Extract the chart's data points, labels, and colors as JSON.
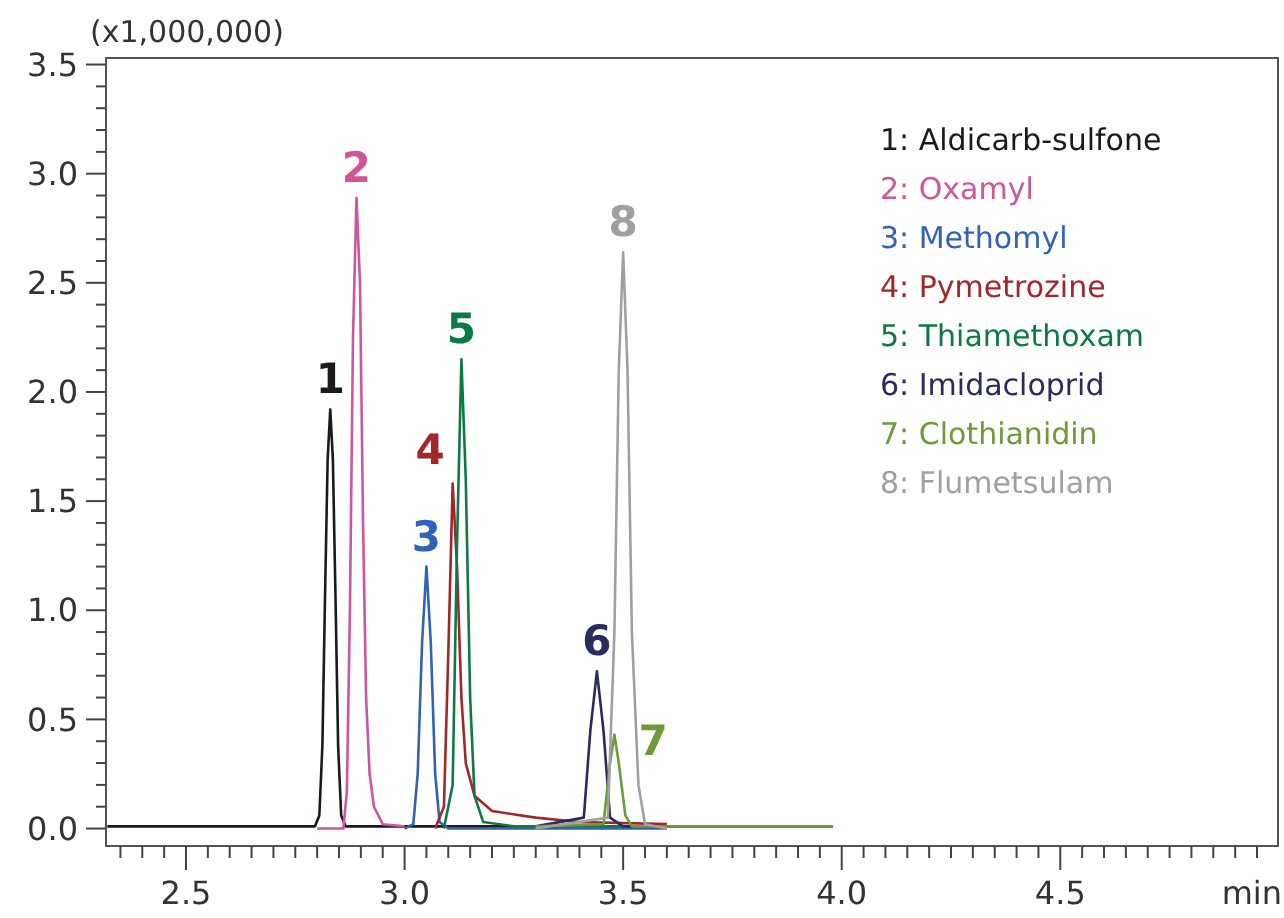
{
  "chart_data": {
    "type": "line",
    "ylabel": "(x1,000,000)",
    "xlabel": "min",
    "legend": "top right",
    "grid": false,
    "marker": "none",
    "line_style": "solid",
    "xlim": [
      2.317,
      4.998
    ],
    "ylim": [
      -0.08,
      3.53
    ],
    "xticks": [
      {
        "value": 2.35,
        "label": null
      },
      {
        "value": 2.4,
        "label": null
      },
      {
        "value": 2.45,
        "label": null
      },
      {
        "value": 2.5,
        "label": "2.5"
      },
      {
        "value": 2.55,
        "label": null
      },
      {
        "value": 2.6,
        "label": null
      },
      {
        "value": 2.65,
        "label": null
      },
      {
        "value": 2.7,
        "label": null
      },
      {
        "value": 2.75,
        "label": null
      },
      {
        "value": 2.8,
        "label": null
      },
      {
        "value": 2.85,
        "label": null
      },
      {
        "value": 2.9,
        "label": null
      },
      {
        "value": 2.95,
        "label": null
      },
      {
        "value": 3.0,
        "label": "3.0"
      },
      {
        "value": 3.05,
        "label": null
      },
      {
        "value": 3.1,
        "label": null
      },
      {
        "value": 3.15,
        "label": null
      },
      {
        "value": 3.2,
        "label": null
      },
      {
        "value": 3.25,
        "label": null
      },
      {
        "value": 3.3,
        "label": null
      },
      {
        "value": 3.35,
        "label": null
      },
      {
        "value": 3.4,
        "label": null
      },
      {
        "value": 3.45,
        "label": null
      },
      {
        "value": 3.5,
        "label": "3.5"
      },
      {
        "value": 3.55,
        "label": null
      },
      {
        "value": 3.6,
        "label": null
      },
      {
        "value": 3.65,
        "label": null
      },
      {
        "value": 3.7,
        "label": null
      },
      {
        "value": 3.75,
        "label": null
      },
      {
        "value": 3.8,
        "label": null
      },
      {
        "value": 3.85,
        "label": null
      },
      {
        "value": 3.9,
        "label": null
      },
      {
        "value": 3.95,
        "label": null
      },
      {
        "value": 4.0,
        "label": "4.0"
      },
      {
        "value": 4.05,
        "label": null
      },
      {
        "value": 4.1,
        "label": null
      },
      {
        "value": 4.15,
        "label": null
      },
      {
        "value": 4.2,
        "label": null
      },
      {
        "value": 4.25,
        "label": null
      },
      {
        "value": 4.3,
        "label": null
      },
      {
        "value": 4.35,
        "label": null
      },
      {
        "value": 4.4,
        "label": null
      },
      {
        "value": 4.45,
        "label": null
      },
      {
        "value": 4.5,
        "label": "4.5"
      },
      {
        "value": 4.55,
        "label": null
      },
      {
        "value": 4.6,
        "label": null
      },
      {
        "value": 4.65,
        "label": null
      },
      {
        "value": 4.7,
        "label": null
      },
      {
        "value": 4.75,
        "label": null
      },
      {
        "value": 4.8,
        "label": null
      },
      {
        "value": 4.85,
        "label": null
      },
      {
        "value": 4.9,
        "label": null
      },
      {
        "value": 4.95,
        "label": null
      }
    ],
    "yticks": [
      {
        "value": 0,
        "label": "0.0"
      },
      {
        "value": 0.1,
        "label": null
      },
      {
        "value": 0.2,
        "label": null
      },
      {
        "value": 0.3,
        "label": null
      },
      {
        "value": 0.4,
        "label": null
      },
      {
        "value": 0.5,
        "label": "0.5"
      },
      {
        "value": 0.6,
        "label": null
      },
      {
        "value": 0.7,
        "label": null
      },
      {
        "value": 0.8,
        "label": null
      },
      {
        "value": 0.9,
        "label": null
      },
      {
        "value": 1.0,
        "label": "1.0"
      },
      {
        "value": 1.1,
        "label": null
      },
      {
        "value": 1.2,
        "label": null
      },
      {
        "value": 1.3,
        "label": null
      },
      {
        "value": 1.4,
        "label": null
      },
      {
        "value": 1.5,
        "label": "1.5"
      },
      {
        "value": 1.6,
        "label": null
      },
      {
        "value": 1.7,
        "label": null
      },
      {
        "value": 1.8,
        "label": null
      },
      {
        "value": 1.9,
        "label": null
      },
      {
        "value": 2.0,
        "label": "2.0"
      },
      {
        "value": 2.1,
        "label": null
      },
      {
        "value": 2.2,
        "label": null
      },
      {
        "value": 2.3,
        "label": null
      },
      {
        "value": 2.4,
        "label": null
      },
      {
        "value": 2.5,
        "label": "2.5"
      },
      {
        "value": 2.6,
        "label": null
      },
      {
        "value": 2.7,
        "label": null
      },
      {
        "value": 2.8,
        "label": null
      },
      {
        "value": 2.9,
        "label": null
      },
      {
        "value": 3.0,
        "label": "3.0"
      },
      {
        "value": 3.1,
        "label": null
      },
      {
        "value": 3.2,
        "label": null
      },
      {
        "value": 3.3,
        "label": null
      },
      {
        "value": 3.4,
        "label": null
      },
      {
        "value": 3.5,
        "label": "3.5"
      }
    ],
    "series": [
      {
        "name": "1: Aldicarb-sulfone",
        "color": "#1a1a1a",
        "x": [
          2.32,
          2.795,
          2.805,
          2.812,
          2.818,
          2.824,
          2.83,
          2.836,
          2.842,
          2.848,
          2.855,
          2.865,
          3.35
        ],
        "values": [
          0.01,
          0.01,
          0.06,
          0.38,
          1.06,
          1.69,
          1.92,
          1.69,
          1.06,
          0.38,
          0.06,
          0.01,
          0.01
        ]
      },
      {
        "name": "2: Oxamyl",
        "color": "#d0559a",
        "x": [
          2.8,
          2.86,
          2.868,
          2.875,
          2.882,
          2.89,
          2.898,
          2.905,
          2.912,
          2.92,
          2.93,
          2.95,
          3.0
        ],
        "values": [
          0,
          0,
          0.17,
          1.0,
          2.25,
          2.89,
          2.5,
          1.4,
          0.6,
          0.25,
          0.1,
          0.02,
          0.01
        ]
      },
      {
        "name": "3: Methomyl",
        "color": "#2f62b8",
        "x": [
          3.0,
          3.02,
          3.03,
          3.04,
          3.05,
          3.06,
          3.07,
          3.08,
          3.1,
          3.6
        ],
        "values": [
          0,
          0.02,
          0.25,
          0.85,
          1.2,
          0.85,
          0.25,
          0.03,
          0,
          0
        ]
      },
      {
        "name": "4: Pymetrozine",
        "color": "#a3262b",
        "x": [
          3.07,
          3.09,
          3.1,
          3.11,
          3.12,
          3.13,
          3.14,
          3.16,
          3.2,
          3.3,
          3.4,
          3.6
        ],
        "values": [
          0,
          0.1,
          0.8,
          1.58,
          1.2,
          0.6,
          0.3,
          0.15,
          0.08,
          0.05,
          0.03,
          0.02
        ]
      },
      {
        "name": "5: Thiamethoxam",
        "color": "#0b7a45",
        "x": [
          3.09,
          3.11,
          3.12,
          3.13,
          3.14,
          3.15,
          3.16,
          3.18,
          3.25,
          3.6
        ],
        "values": [
          0,
          0.2,
          1.3,
          2.15,
          1.6,
          0.6,
          0.15,
          0.03,
          0.01,
          0.01
        ]
      },
      {
        "name": "6: Imidacloprid",
        "color": "#2b2b5e",
        "x": [
          3.3,
          3.41,
          3.425,
          3.44,
          3.455,
          3.47,
          3.5,
          3.98
        ],
        "values": [
          0.01,
          0.05,
          0.45,
          0.72,
          0.45,
          0.05,
          0.01,
          0.01
        ]
      },
      {
        "name": "7: Clothianidin",
        "color": "#6f9a38",
        "x": [
          3.3,
          3.455,
          3.47,
          3.48,
          3.49,
          3.505,
          3.52,
          3.98
        ],
        "values": [
          0.01,
          0.02,
          0.3,
          0.43,
          0.3,
          0.06,
          0.01,
          0.01
        ]
      },
      {
        "name": "8: Flumetsulam",
        "color": "#a0a0a0",
        "x": [
          3.3,
          3.465,
          3.48,
          3.49,
          3.5,
          3.51,
          3.52,
          3.535,
          3.55,
          3.6
        ],
        "values": [
          0,
          0.05,
          0.9,
          2.1,
          2.64,
          2.1,
          0.9,
          0.2,
          0.02,
          0
        ]
      }
    ],
    "annotations": [
      {
        "text": "1",
        "x": 2.83,
        "y": 1.92
      },
      {
        "text": "2",
        "x": 2.89,
        "y": 2.89
      },
      {
        "text": "3",
        "x": 3.05,
        "y": 1.2
      },
      {
        "text": "4",
        "x": 3.11,
        "y": 1.58
      },
      {
        "text": "5",
        "x": 3.13,
        "y": 2.15
      },
      {
        "text": "6",
        "x": 3.44,
        "y": 0.72
      },
      {
        "text": "7",
        "x": 3.48,
        "y": 0.43
      },
      {
        "text": "8",
        "x": 3.5,
        "y": 2.64
      }
    ]
  }
}
